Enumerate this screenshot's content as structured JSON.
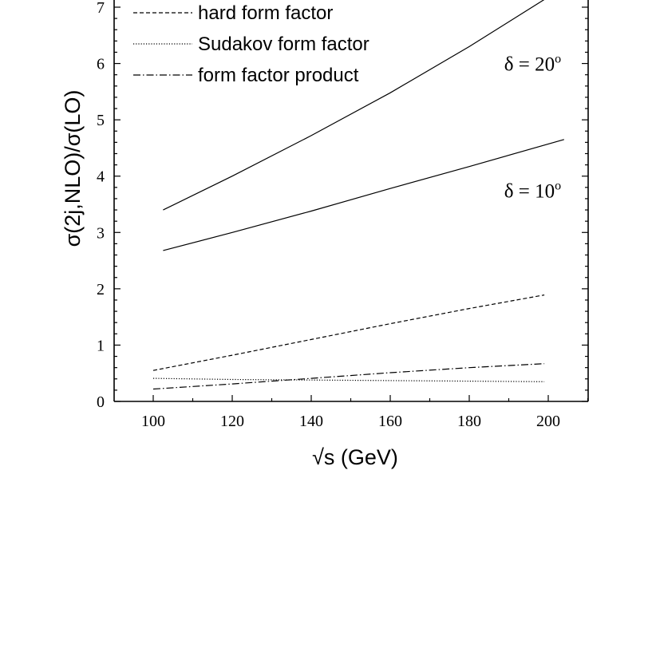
{
  "chart_data": {
    "type": "line",
    "xlabel": "√s  (GeV)",
    "ylabel": "σ(2j,NLO)/σ(LO)",
    "xlim": [
      90,
      210
    ],
    "ylim": [
      0,
      7
    ],
    "xticks": [
      100,
      120,
      140,
      160,
      180,
      200
    ],
    "yticks": [
      0,
      1,
      2,
      3,
      4,
      5,
      6,
      7
    ],
    "grid": false,
    "legend_position": "top-left",
    "series": [
      {
        "name": "",
        "style": "solid",
        "x": [
          102.5,
          120,
          140,
          160,
          180,
          200
        ],
        "y": [
          3.4,
          4.0,
          4.72,
          5.48,
          6.3,
          7.18
        ]
      },
      {
        "name": "",
        "style": "solid",
        "x": [
          102.5,
          120,
          140,
          160,
          180,
          204
        ],
        "y": [
          2.68,
          3.0,
          3.38,
          3.78,
          4.17,
          4.65
        ]
      },
      {
        "name": "hard form factor",
        "style": "dashed",
        "x": [
          100,
          120,
          140,
          160,
          180,
          199
        ],
        "y": [
          0.55,
          0.82,
          1.1,
          1.38,
          1.65,
          1.89
        ]
      },
      {
        "name": "Sudakov form factor",
        "style": "dotted",
        "x": [
          100,
          120,
          140,
          160,
          180,
          199
        ],
        "y": [
          0.41,
          0.39,
          0.38,
          0.37,
          0.36,
          0.35
        ]
      },
      {
        "name": "form factor product",
        "style": "dashdot",
        "x": [
          100,
          120,
          140,
          160,
          180,
          199
        ],
        "y": [
          0.22,
          0.31,
          0.41,
          0.51,
          0.6,
          0.67
        ]
      }
    ],
    "annotations": [
      {
        "text_base": "δ = 20",
        "text_sup": "o",
        "x": 186,
        "y": 6.0
      },
      {
        "text_base": "δ = 10",
        "text_sup": "o",
        "x": 186,
        "y": 3.75
      }
    ]
  }
}
